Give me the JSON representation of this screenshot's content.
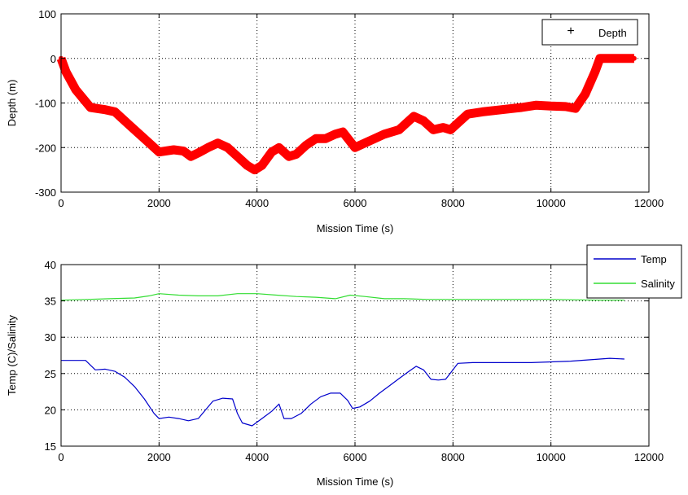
{
  "chart_data": [
    {
      "type": "line",
      "title": "",
      "xlabel": "Mission Time (s)",
      "ylabel": "Depth (m)",
      "xlim": [
        0,
        12000
      ],
      "ylim": [
        -300,
        100
      ],
      "xticks": [
        0,
        2000,
        4000,
        6000,
        8000,
        10000,
        12000
      ],
      "yticks": [
        -300,
        -200,
        -100,
        0,
        100
      ],
      "grid": true,
      "legend_position": "top-right",
      "series": [
        {
          "name": "Depth",
          "color": "#ff0000",
          "marker": "+",
          "x": [
            0,
            100,
            300,
            600,
            900,
            1100,
            1400,
            1700,
            2000,
            2300,
            2500,
            2650,
            2800,
            3000,
            3200,
            3400,
            3600,
            3800,
            3950,
            4100,
            4300,
            4450,
            4650,
            4800,
            5000,
            5200,
            5400,
            5600,
            5750,
            6000,
            6200,
            6400,
            6600,
            6900,
            7200,
            7400,
            7600,
            7800,
            7950,
            8100,
            8300,
            8600,
            9000,
            9400,
            9700,
            10000,
            10300,
            10500,
            10700,
            10900,
            11000,
            11200,
            11400,
            11700
          ],
          "y": [
            0,
            -30,
            -70,
            -110,
            -115,
            -120,
            -150,
            -180,
            -210,
            -205,
            -208,
            -220,
            -212,
            -200,
            -190,
            -200,
            -220,
            -240,
            -250,
            -240,
            -210,
            -200,
            -220,
            -215,
            -195,
            -180,
            -180,
            -170,
            -165,
            -200,
            -190,
            -180,
            -170,
            -160,
            -130,
            -140,
            -160,
            -155,
            -160,
            -145,
            -125,
            -120,
            -115,
            -110,
            -105,
            -107,
            -108,
            -112,
            -80,
            -30,
            0,
            0,
            0,
            0
          ]
        }
      ]
    },
    {
      "type": "line",
      "title": "",
      "xlabel": "Mission Time (s)",
      "ylabel": "Temp (C)/Salinity",
      "xlim": [
        0,
        12000
      ],
      "ylim": [
        15,
        40
      ],
      "xticks": [
        0,
        2000,
        4000,
        6000,
        8000,
        10000,
        12000
      ],
      "yticks": [
        15,
        20,
        25,
        30,
        35,
        40
      ],
      "grid": true,
      "legend_position": "outside-top-right",
      "series": [
        {
          "name": "Temp",
          "color": "#0000cc",
          "x": [
            0,
            300,
            500,
            700,
            900,
            1100,
            1300,
            1500,
            1700,
            1900,
            2000,
            2200,
            2400,
            2600,
            2800,
            2950,
            3100,
            3300,
            3500,
            3600,
            3700,
            3900,
            4100,
            4300,
            4450,
            4550,
            4700,
            4900,
            5100,
            5300,
            5500,
            5700,
            5850,
            5950,
            6100,
            6300,
            6500,
            6700,
            6900,
            7100,
            7250,
            7400,
            7550,
            7700,
            7850,
            8000,
            8100,
            8400,
            9000,
            9600,
            10000,
            10400,
            10800,
            11200,
            11500
          ],
          "y": [
            26.8,
            26.8,
            26.8,
            25.5,
            25.6,
            25.3,
            24.5,
            23.2,
            21.5,
            19.5,
            18.8,
            19,
            18.8,
            18.5,
            18.8,
            20,
            21.2,
            21.6,
            21.5,
            19.5,
            18.2,
            17.8,
            18.8,
            19.8,
            20.8,
            18.8,
            18.8,
            19.5,
            20.8,
            21.8,
            22.3,
            22.3,
            21.3,
            20.2,
            20.4,
            21.2,
            22.3,
            23.3,
            24.3,
            25.3,
            26,
            25.5,
            24.2,
            24.1,
            24.2,
            25.5,
            26.4,
            26.5,
            26.5,
            26.5,
            26.6,
            26.7,
            26.9,
            27.1,
            27
          ]
        },
        {
          "name": "Salinity",
          "color": "#33dd33",
          "x": [
            0,
            500,
            1000,
            1500,
            1800,
            2000,
            2400,
            2800,
            3200,
            3600,
            4000,
            4400,
            4800,
            5200,
            5600,
            5900,
            6200,
            6600,
            7000,
            7500,
            8000,
            8500,
            9000,
            10000,
            11000,
            11500
          ],
          "y": [
            35.1,
            35.2,
            35.3,
            35.4,
            35.7,
            36,
            35.8,
            35.7,
            35.7,
            36,
            36,
            35.8,
            35.6,
            35.5,
            35.3,
            35.8,
            35.6,
            35.3,
            35.3,
            35.2,
            35.2,
            35.2,
            35.2,
            35.2,
            35.1,
            35.1
          ]
        }
      ]
    }
  ]
}
